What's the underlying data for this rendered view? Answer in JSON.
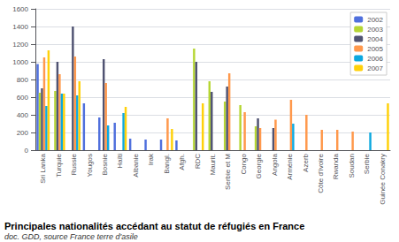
{
  "chart_data": {
    "type": "bar",
    "title": "Principales nationalités accédant au statut de réfugiés en France",
    "subtitle": "doc. GDD, source France terre d'asile",
    "categories": [
      "Sri Lanka",
      "Turquie",
      "Russie",
      "Yougos",
      "Bosnie",
      "Haïti",
      "Albanie",
      "Irak",
      "Bangl.",
      "Afgh.",
      "RDC",
      "Maurit.",
      "Serbie et M",
      "Congo",
      "Georgie",
      "Angola",
      "Arménie",
      "Azerb",
      "Côte d'Ivoire",
      "Rwanda",
      "Soudan",
      "Serbie",
      "Guinée Conakry"
    ],
    "series": [
      {
        "name": "2002",
        "values": [
          975,
          0,
          0,
          530,
          370,
          310,
          130,
          120,
          120,
          110,
          0,
          0,
          0,
          0,
          0,
          0,
          0,
          0,
          0,
          0,
          0,
          0,
          0
        ]
      },
      {
        "name": "2003",
        "values": [
          650,
          670,
          0,
          0,
          0,
          0,
          0,
          0,
          0,
          0,
          1150,
          780,
          550,
          510,
          270,
          0,
          0,
          0,
          0,
          0,
          0,
          0,
          0
        ]
      },
      {
        "name": "2004",
        "values": [
          700,
          1000,
          1400,
          0,
          1030,
          0,
          0,
          0,
          0,
          0,
          1000,
          660,
          720,
          0,
          360,
          250,
          0,
          0,
          0,
          0,
          0,
          0,
          0
        ]
      },
      {
        "name": "2005",
        "values": [
          1050,
          860,
          1060,
          0,
          760,
          0,
          0,
          0,
          360,
          0,
          0,
          0,
          870,
          430,
          250,
          345,
          570,
          400,
          230,
          230,
          210,
          0,
          0
        ]
      },
      {
        "name": "2006",
        "values": [
          500,
          640,
          620,
          0,
          280,
          420,
          0,
          0,
          0,
          0,
          0,
          0,
          0,
          0,
          0,
          0,
          300,
          0,
          0,
          0,
          0,
          200,
          0
        ]
      },
      {
        "name": "2007",
        "values": [
          1130,
          640,
          780,
          0,
          0,
          490,
          0,
          0,
          240,
          0,
          530,
          0,
          0,
          0,
          0,
          0,
          0,
          0,
          0,
          0,
          0,
          0,
          530
        ]
      }
    ],
    "ylim": [
      0,
      1600
    ],
    "yticks": [
      0,
      200,
      400,
      600,
      800,
      1000,
      1200,
      1400,
      1600
    ],
    "grid": true,
    "legend": "upper right"
  }
}
